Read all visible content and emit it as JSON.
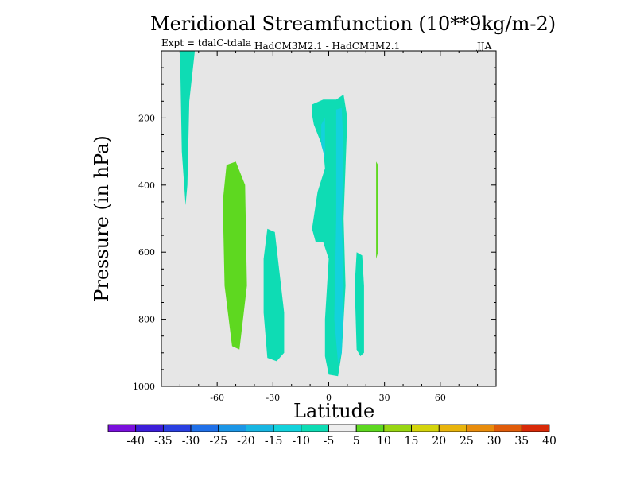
{
  "chart_data": {
    "type": "contour",
    "title": "Meridional Streamfunction (10**9kg/m-2)",
    "subtitle_left": "Expt = tdalC-tdala",
    "subtitle_center": "HadCM3M2.1 - HadCM3M2.1",
    "subtitle_right": "JJA",
    "xlabel": "Latitude",
    "ylabel": "Pressure (in hPa)",
    "xlim": [
      -90,
      90
    ],
    "ylim": [
      1000,
      0
    ],
    "x_ticks": [
      -60,
      -30,
      0,
      30,
      60
    ],
    "y_ticks": [
      200,
      400,
      600,
      800,
      1000
    ],
    "colorbar": {
      "levels": [
        -40,
        -35,
        -30,
        -25,
        -20,
        -15,
        -10,
        -5,
        5,
        10,
        15,
        20,
        25,
        30,
        35,
        40
      ],
      "colors": [
        "#7a10dc",
        "#3c1ed8",
        "#2a3fe0",
        "#2070e8",
        "#1c96e6",
        "#18b6e2",
        "#13d2dc",
        "#0edcb4",
        "#eeeeee",
        "#5ed820",
        "#98d612",
        "#d4d40c",
        "#e8b40c",
        "#e88c0c",
        "#e05c0a",
        "#d82a08"
      ]
    },
    "regions": [
      {
        "name": "contour-region-1",
        "level_range": "-10 to -5",
        "color": "#0edcb4",
        "points": [
          [
            -80,
            0
          ],
          [
            -72,
            0
          ],
          [
            -75,
            150
          ],
          [
            -76,
            400
          ],
          [
            -77,
            460
          ],
          [
            -79,
            300
          ]
        ]
      },
      {
        "name": "contour-region-2",
        "level_range": "5 to 10",
        "color": "#5ed820",
        "points": [
          [
            -55,
            340
          ],
          [
            -50,
            330
          ],
          [
            -45,
            400
          ],
          [
            -44,
            700
          ],
          [
            -48,
            890
          ],
          [
            -52,
            880
          ],
          [
            -56,
            700
          ],
          [
            -57,
            450
          ]
        ]
      },
      {
        "name": "contour-region-3",
        "level_range": "-10 to -5",
        "color": "#0edcb4",
        "points": [
          [
            -33,
            530
          ],
          [
            -29,
            540
          ],
          [
            -24,
            780
          ],
          [
            -24,
            900
          ],
          [
            -28,
            925
          ],
          [
            -33,
            915
          ],
          [
            -35,
            780
          ],
          [
            -35,
            620
          ]
        ]
      },
      {
        "name": "contour-region-4",
        "level_range": "-10 to -5",
        "color": "#0edcb4",
        "points": [
          [
            -9,
            160
          ],
          [
            -3,
            145
          ],
          [
            4,
            145
          ],
          [
            8,
            130
          ],
          [
            10,
            200
          ],
          [
            8,
            500
          ],
          [
            9,
            700
          ],
          [
            7,
            900
          ],
          [
            5,
            970
          ],
          [
            0,
            965
          ],
          [
            -2,
            910
          ],
          [
            -2,
            800
          ],
          [
            0,
            620
          ],
          [
            -3,
            570
          ],
          [
            -7,
            570
          ],
          [
            -9,
            530
          ],
          [
            -6,
            420
          ],
          [
            -2,
            350
          ],
          [
            -3,
            290
          ],
          [
            -8,
            220
          ],
          [
            -9,
            190
          ]
        ]
      },
      {
        "name": "contour-region-5",
        "level_range": "-15 to -10",
        "color": "#13d2dc",
        "points": [
          [
            4,
            175
          ],
          [
            7,
            170
          ],
          [
            8,
            300
          ],
          [
            7,
            500
          ],
          [
            8,
            700
          ],
          [
            7,
            900
          ],
          [
            5,
            930
          ],
          [
            3,
            800
          ],
          [
            4,
            500
          ]
        ]
      },
      {
        "name": "contour-region-6",
        "level_range": "-15 to -10",
        "color": "#13d2dc",
        "points": [
          [
            -4,
            220
          ],
          [
            -2,
            200
          ],
          [
            -2,
            320
          ],
          [
            -4,
            280
          ]
        ]
      },
      {
        "name": "contour-region-7",
        "level_range": "-10 to -5",
        "color": "#0edcb4",
        "points": [
          [
            15,
            600
          ],
          [
            18,
            610
          ],
          [
            19,
            700
          ],
          [
            19,
            900
          ],
          [
            17,
            910
          ],
          [
            15,
            890
          ],
          [
            14,
            700
          ]
        ]
      },
      {
        "name": "contour-region-8",
        "level_range": "5 to 10",
        "color": "#5ed820",
        "points": [
          [
            25.5,
            330
          ],
          [
            26.5,
            340
          ],
          [
            26.5,
            600
          ],
          [
            25.5,
            620
          ]
        ]
      }
    ]
  }
}
